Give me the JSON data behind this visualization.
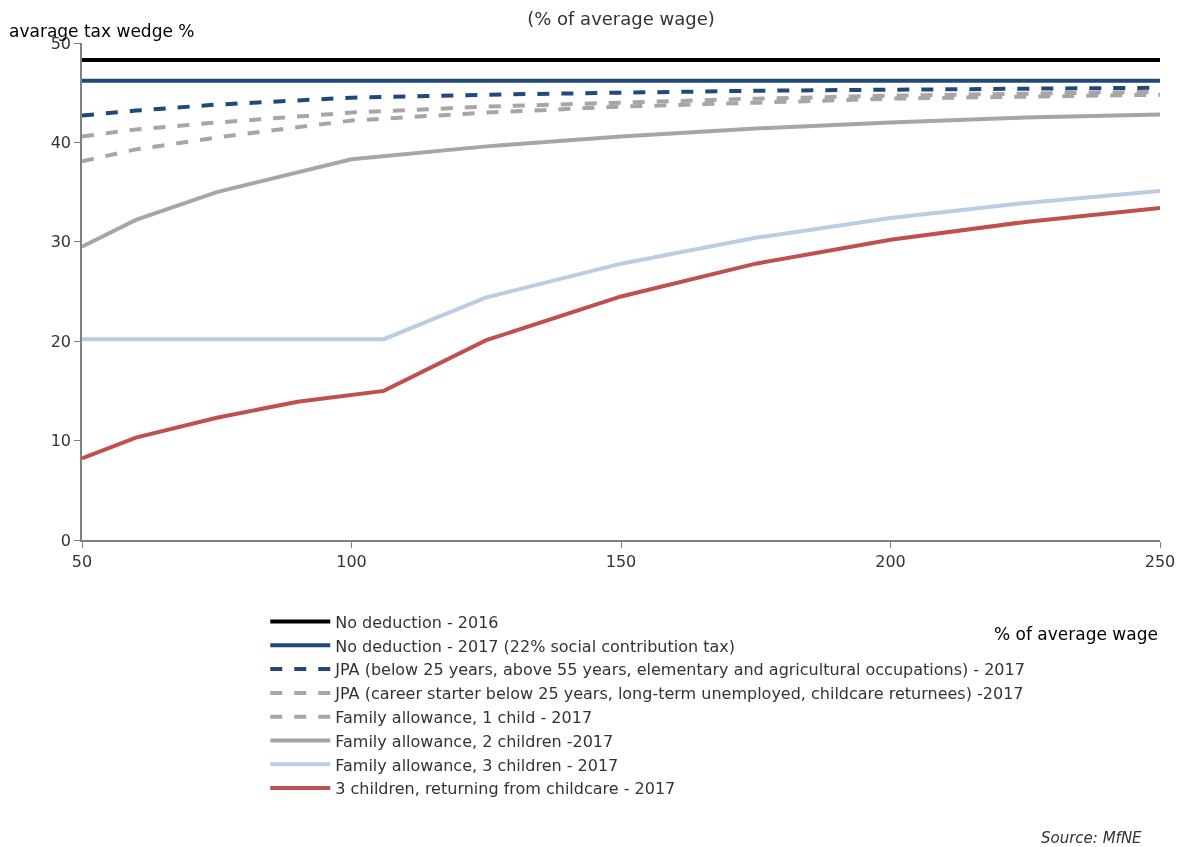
{
  "chart_data": {
    "type": "line",
    "title": "(% of average wage)",
    "ylabel": "avarage tax wedge %",
    "xlabel": "% of average wage",
    "x": [
      50,
      60,
      75,
      100,
      125,
      150,
      175,
      200,
      225,
      250
    ],
    "xlim": [
      50,
      250
    ],
    "xticks": [
      50,
      100,
      150,
      200,
      250
    ],
    "ylim": [
      0,
      50
    ],
    "yticks": [
      0,
      10,
      20,
      30,
      40,
      50
    ],
    "grid": false,
    "legend": "bottom",
    "marker": "none",
    "series": [
      {
        "name": "No deduction - 2016",
        "color": "#000000",
        "line_style": "solid",
        "values": [
          48.3,
          48.3,
          48.3,
          48.3,
          48.3,
          48.3,
          48.3,
          48.3,
          48.3,
          48.3
        ]
      },
      {
        "name": "No deduction - 2017 (22% social contribution tax)",
        "color": "#1f497d",
        "line_style": "solid",
        "values": [
          46.2,
          46.2,
          46.2,
          46.2,
          46.2,
          46.2,
          46.2,
          46.2,
          46.2,
          46.2
        ]
      },
      {
        "name": "JPA (below 25 years, above 55 years, elementary and agricultural occupations) - 2017",
        "color": "#1f497d",
        "line_style": "dashed",
        "values": [
          42.7,
          43.2,
          43.8,
          44.5,
          44.8,
          45.0,
          45.2,
          45.3,
          45.4,
          45.5
        ]
      },
      {
        "name": "JPA (career starter below 25 years, long-term unemployed, childcare returnees) -2017",
        "color": "#a6a6a6",
        "line_style": "dashed",
        "values": [
          38.1,
          39.3,
          40.5,
          42.2,
          43.0,
          43.6,
          44.0,
          44.4,
          44.6,
          44.8
        ]
      },
      {
        "name": "Family allowance, 1 child - 2017",
        "color": "#a6a6a6",
        "line_style": "dashed",
        "values": [
          40.6,
          41.3,
          42.0,
          43.0,
          43.6,
          44.0,
          44.4,
          44.7,
          44.9,
          45.1
        ]
      },
      {
        "name": "Family allowance, 2 children -2017",
        "color": "#a6a6a6",
        "line_style": "solid",
        "values": [
          29.5,
          32.2,
          35.0,
          38.3,
          39.6,
          40.6,
          41.4,
          42.0,
          42.5,
          42.8
        ]
      },
      {
        "name": "Family allowance, 3 children - 2017",
        "color": "#b9cde5",
        "line_style": "solid",
        "x": [
          50,
          106,
          125,
          150,
          175,
          200,
          225,
          250
        ],
        "values": [
          20.2,
          20.2,
          24.4,
          27.8,
          30.4,
          32.4,
          33.9,
          35.1
        ]
      },
      {
        "name": "3 children, returning from childcare - 2017",
        "color": "#c0504d",
        "line_style": "solid",
        "x": [
          50,
          60,
          75,
          90,
          106,
          125,
          150,
          175,
          200,
          225,
          250
        ],
        "values": [
          8.2,
          10.3,
          12.3,
          13.9,
          15.0,
          20.1,
          24.5,
          27.8,
          30.2,
          32.0,
          33.4
        ]
      }
    ],
    "annotations": [
      "Source: MfNE"
    ]
  }
}
